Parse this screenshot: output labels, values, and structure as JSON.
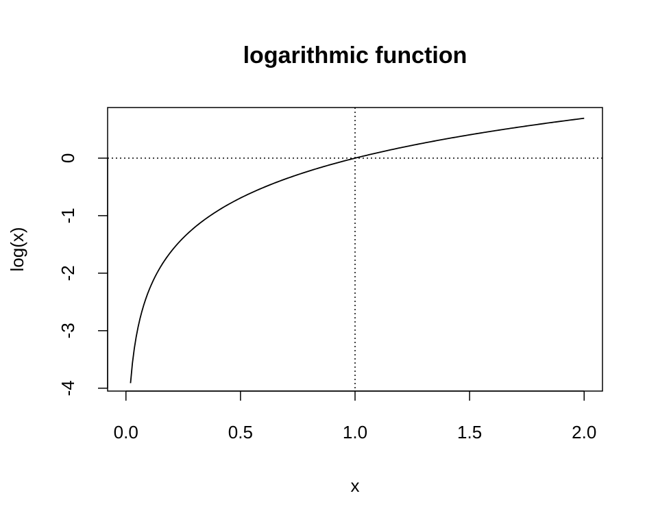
{
  "chart_data": {
    "type": "line",
    "title": "logarithmic function",
    "xlabel": "x",
    "ylabel": "log(x)",
    "function": "log(x)",
    "x_range": [
      0.02,
      2.0
    ],
    "xlim": [
      -0.08,
      2.08
    ],
    "ylim": [
      -4.05,
      0.88
    ],
    "x_ticks": [
      0.0,
      0.5,
      1.0,
      1.5,
      2.0
    ],
    "x_tick_labels": [
      "0.0",
      "0.5",
      "1.0",
      "1.5",
      "2.0"
    ],
    "y_ticks": [
      -4,
      -3,
      -2,
      -1,
      0
    ],
    "y_tick_labels": [
      "-4",
      "-3",
      "-2",
      "-1",
      "0"
    ],
    "reference_lines": {
      "horizontal_y": 0,
      "vertical_x": 1,
      "style": "dotted"
    },
    "series": [
      {
        "x": [
          0.02,
          0.03,
          0.04,
          0.05,
          0.07,
          0.1,
          0.15,
          0.2,
          0.3,
          0.4,
          0.5,
          0.6,
          0.7,
          0.8,
          0.9,
          1.0,
          1.2,
          1.4,
          1.6,
          1.8,
          2.0
        ],
        "values": [
          -3.912,
          -3.507,
          -3.219,
          -2.996,
          -2.659,
          -2.303,
          -1.897,
          -1.609,
          -1.204,
          -0.916,
          -0.693,
          -0.511,
          -0.357,
          -0.223,
          -0.105,
          0.0,
          0.182,
          0.336,
          0.47,
          0.588,
          0.693
        ]
      }
    ],
    "grid": false,
    "legend": "none"
  }
}
